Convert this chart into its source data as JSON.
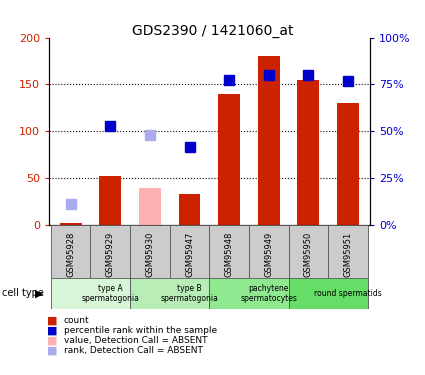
{
  "title": "GDS2390 / 1421060_at",
  "samples": [
    "GSM95928",
    "GSM95929",
    "GSM95930",
    "GSM95947",
    "GSM95948",
    "GSM95949",
    "GSM95950",
    "GSM95951"
  ],
  "counts": [
    2,
    52,
    null,
    33,
    140,
    180,
    155,
    130
  ],
  "counts_absent": [
    null,
    null,
    39,
    null,
    null,
    null,
    null,
    null
  ],
  "ranks": [
    null,
    106,
    null,
    83,
    155,
    160,
    160,
    154
  ],
  "ranks_absent": [
    22,
    null,
    96,
    null,
    null,
    null,
    null,
    null
  ],
  "ylim_left": [
    0,
    200
  ],
  "ylim_right": [
    0,
    100
  ],
  "yticks_left": [
    0,
    50,
    100,
    150,
    200
  ],
  "yticks_right": [
    0,
    25,
    50,
    75,
    100
  ],
  "ytick_labels_left": [
    "0",
    "50",
    "100",
    "150",
    "200"
  ],
  "ytick_labels_right": [
    "0%",
    "25%",
    "50%",
    "75%",
    "100%"
  ],
  "cell_type_groups": [
    {
      "label": "type A\nspermatogonia",
      "start": 0,
      "end": 2,
      "color": "#d8f5d8"
    },
    {
      "label": "type B\nspermatogonia",
      "start": 2,
      "end": 4,
      "color": "#b8edb8"
    },
    {
      "label": "pachytene\nspermatocytes",
      "start": 4,
      "end": 6,
      "color": "#90e890"
    },
    {
      "label": "round spermatids",
      "start": 6,
      "end": 8,
      "color": "#66dd66"
    }
  ],
  "bar_color_present": "#cc2200",
  "bar_color_absent": "#ffb0b0",
  "rank_color_present": "#0000cc",
  "rank_color_absent": "#aaaaee",
  "bar_width": 0.55,
  "marker_size": 7,
  "gridline_ticks": [
    50,
    100,
    150
  ]
}
